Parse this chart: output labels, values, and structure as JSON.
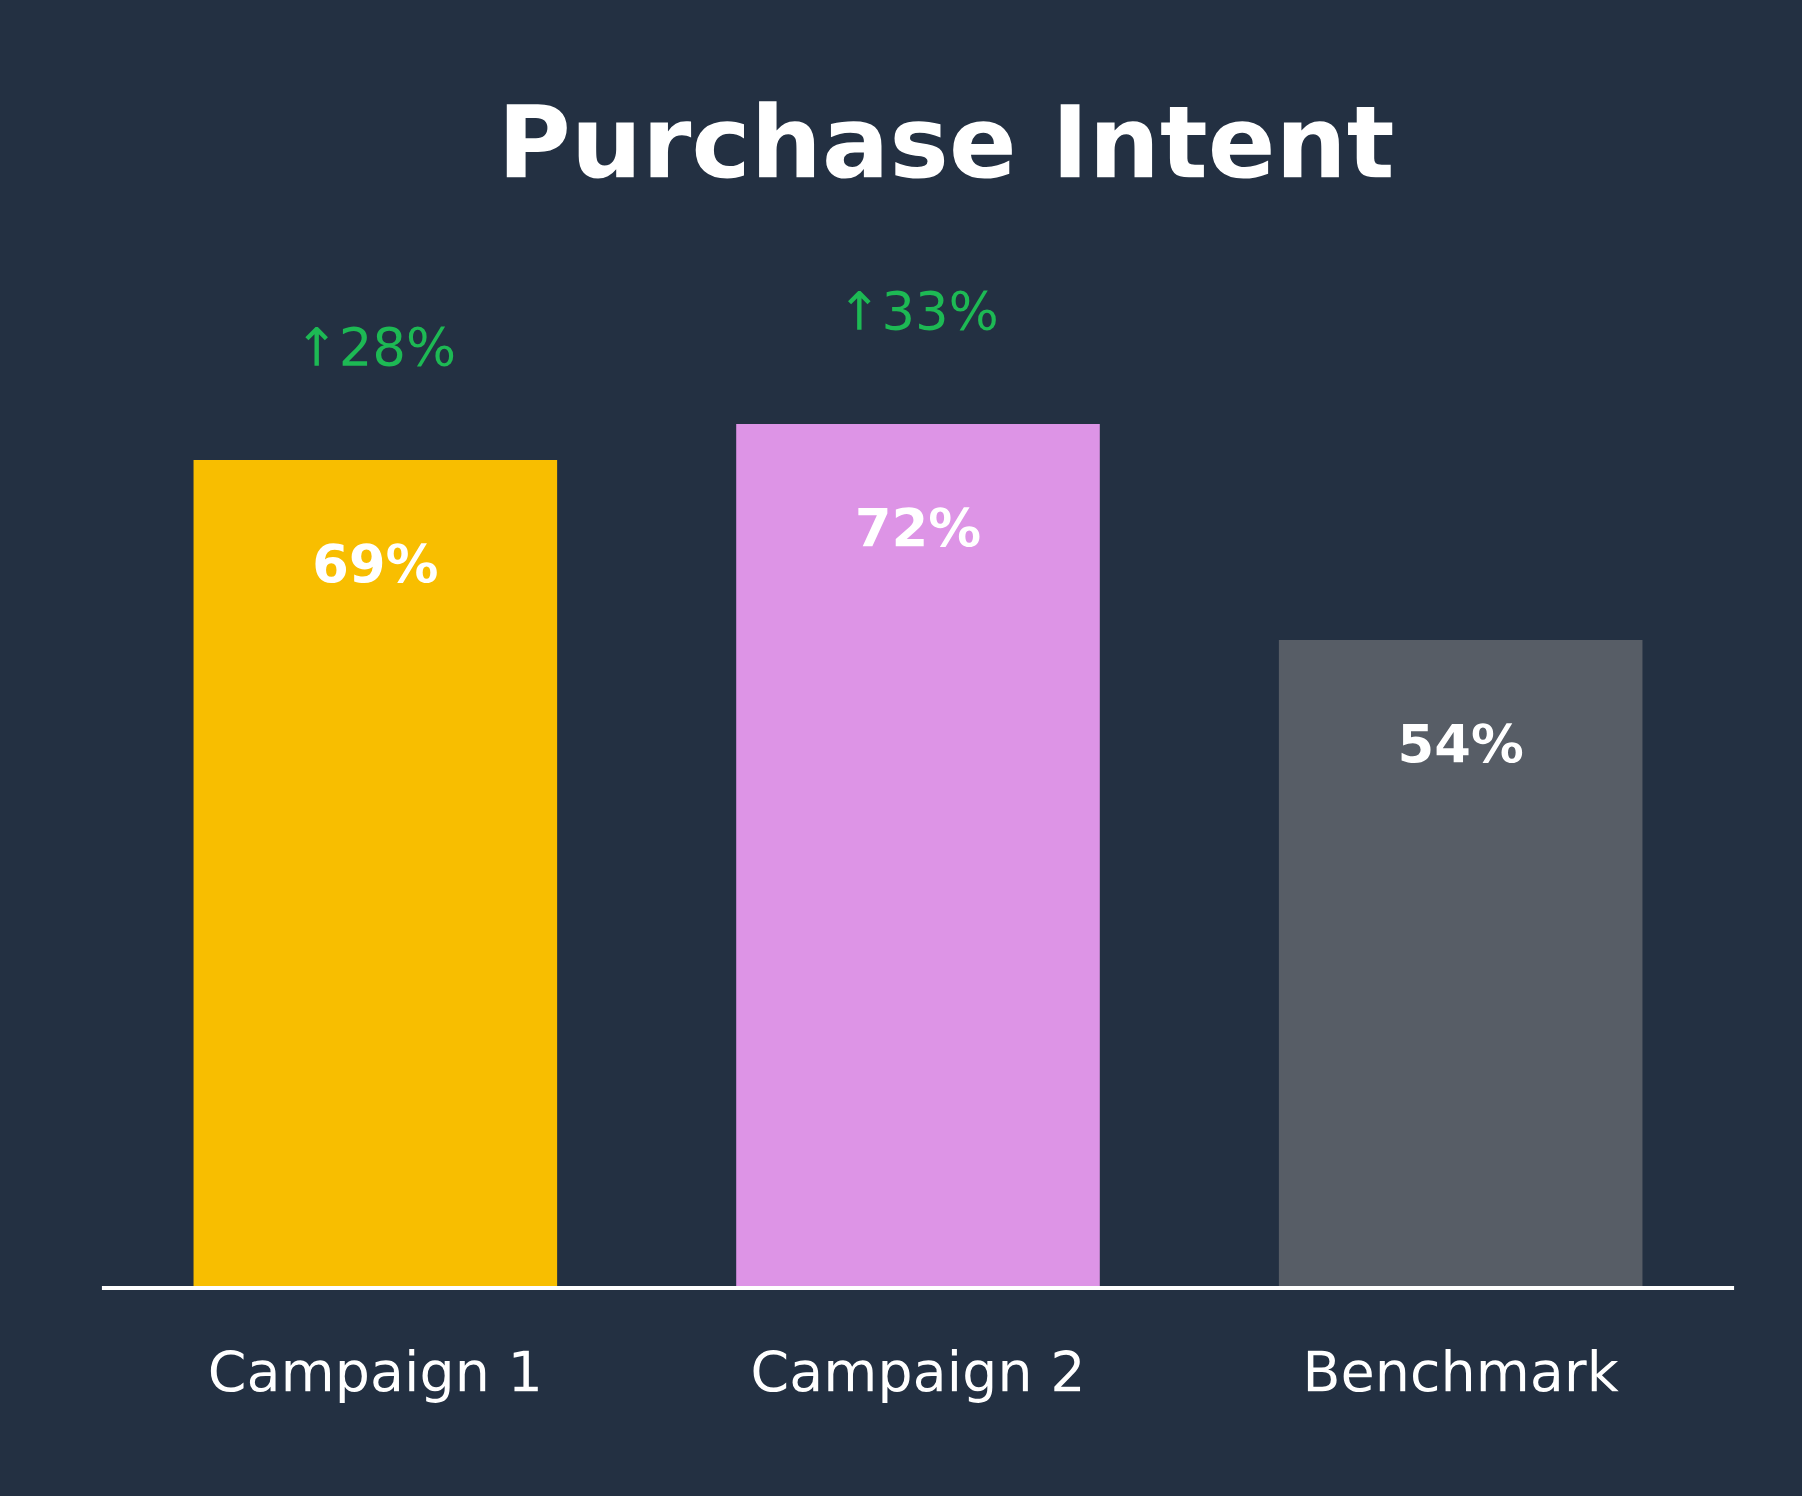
{
  "chart_data": {
    "type": "bar",
    "title": "Purchase Intent",
    "categories": [
      "Campaign 1",
      "Campaign 2",
      "Benchmark"
    ],
    "values": [
      69,
      72,
      54
    ],
    "colors": [
      "#f8be00",
      "#dd94e6",
      "#575d66"
    ],
    "value_labels": [
      "69%",
      "72%",
      "54%"
    ],
    "annotations": [
      {
        "text": "↑28%",
        "x": "Campaign 1",
        "y": 69
      },
      {
        "text": "↑33%",
        "x": "Campaign 2",
        "y": 72
      }
    ],
    "grid": false,
    "legend": false
  }
}
